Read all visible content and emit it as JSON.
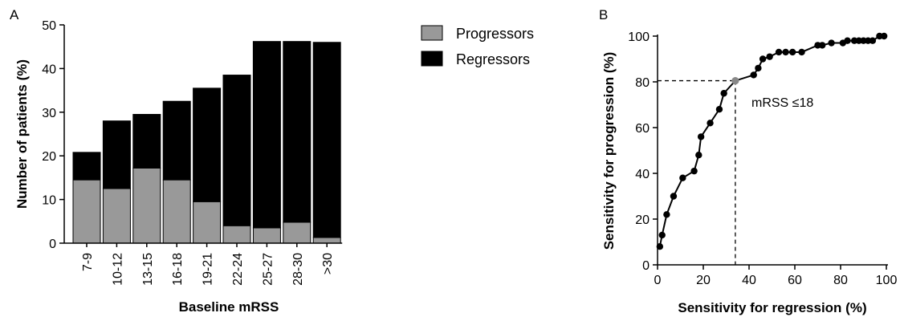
{
  "chart_data": [
    {
      "panel": "A",
      "type": "bar",
      "stacked": true,
      "categories": [
        "7-9",
        "10-12",
        "13-15",
        "16-18",
        "19-21",
        "22-24",
        "25-27",
        "28-30",
        ">30"
      ],
      "series": [
        {
          "name": "Progressors",
          "values": [
            14.5,
            12.5,
            17.2,
            14.5,
            9.5,
            4.0,
            3.5,
            4.8,
            1.3
          ],
          "color": "#999999"
        },
        {
          "name": "Regressors",
          "values": [
            6.3,
            15.5,
            12.3,
            18.0,
            26.0,
            34.5,
            42.7,
            41.4,
            44.7
          ],
          "color": "#000000"
        }
      ],
      "xlabel": "Baseline mRSS",
      "ylabel": "Number of patients (%)",
      "ylim": [
        0,
        50
      ],
      "yticks": [
        0,
        10,
        20,
        30,
        40,
        50
      ],
      "legend_placement": "top-right",
      "grid": false
    },
    {
      "panel": "B",
      "type": "line",
      "xlabel": "Sensitivity for regression (%)",
      "ylabel": "Sensitivity for progression (%)",
      "xlim": [
        0,
        100
      ],
      "ylim": [
        0,
        100
      ],
      "xticks": [
        0,
        20,
        40,
        60,
        80,
        100
      ],
      "yticks": [
        0,
        20,
        40,
        60,
        80,
        100
      ],
      "grid": false,
      "series": [
        {
          "x": [
            1,
            2,
            4,
            7,
            11,
            16,
            18,
            19,
            23,
            27,
            29,
            34,
            42,
            44,
            46,
            49,
            53,
            56,
            59,
            63,
            70,
            72,
            76,
            81,
            83,
            86,
            88,
            90,
            92,
            94,
            97,
            99
          ],
          "y": [
            8,
            13,
            22,
            30,
            38,
            41,
            48,
            56,
            62,
            68,
            75,
            80.5,
            83,
            86,
            90,
            91,
            93,
            93,
            93,
            93,
            96,
            96,
            97,
            97,
            98,
            98,
            98,
            98,
            98,
            98,
            100,
            100
          ],
          "color": "#000000"
        }
      ],
      "highlight_point": {
        "x": 34,
        "y": 80.5,
        "color": "#888888"
      },
      "annotation": "mRSS ≤18"
    }
  ]
}
